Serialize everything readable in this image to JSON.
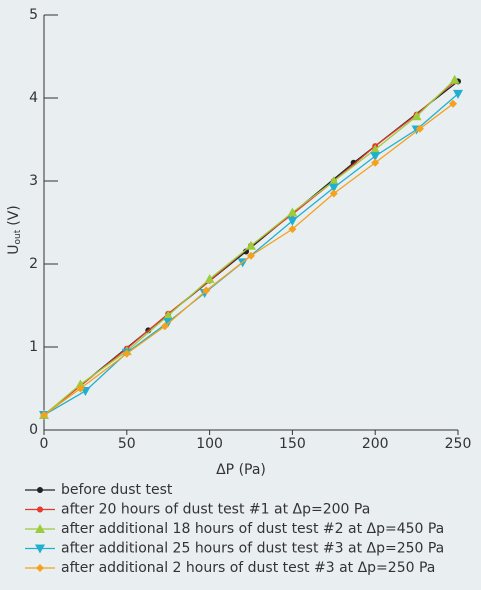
{
  "chart_data": {
    "type": "line",
    "x_label": "ΔP (Pa)",
    "y_label": {
      "main": "U",
      "sub": "out",
      "unit": "(V)"
    },
    "xlim": [
      0,
      250
    ],
    "xticks": [
      0,
      50,
      100,
      150,
      200,
      250
    ],
    "ylim": [
      0,
      5
    ],
    "yticks": [
      0,
      1,
      2,
      3,
      4,
      5
    ],
    "series": [
      {
        "name": "before dust test",
        "color": "#222222",
        "marker": "circle",
        "x": [
          0,
          63,
          122,
          187,
          250
        ],
        "values": [
          0.18,
          1.2,
          2.15,
          3.22,
          4.2
        ]
      },
      {
        "name": "after 20 hours of dust test #1 at Δp=200 Pa",
        "color": "#e8382c",
        "marker": "circle",
        "x": [
          0,
          50,
          75,
          100,
          125,
          150,
          175,
          200,
          225,
          248
        ],
        "values": [
          0.18,
          0.98,
          1.4,
          1.8,
          2.22,
          2.6,
          3.0,
          3.42,
          3.8,
          4.2
        ]
      },
      {
        "name": "after additional 18 hours of dust test #2 at Δp=450 Pa",
        "color": "#9ccc3c",
        "marker": "triangle-up",
        "x": [
          0,
          22,
          50,
          75,
          100,
          125,
          150,
          175,
          200,
          225,
          248
        ],
        "values": [
          0.18,
          0.55,
          0.95,
          1.38,
          1.82,
          2.22,
          2.62,
          3.0,
          3.38,
          3.78,
          4.22
        ]
      },
      {
        "name": "after additional 25 hours of dust test #3 at Δp=250 Pa",
        "color": "#1fb0d0",
        "marker": "triangle-down",
        "x": [
          0,
          25,
          50,
          75,
          97,
          120,
          150,
          175,
          200,
          225,
          250
        ],
        "values": [
          0.18,
          0.47,
          0.93,
          1.3,
          1.65,
          2.02,
          2.52,
          2.92,
          3.3,
          3.62,
          4.05
        ]
      },
      {
        "name": "after additional 2 hours of dust test #3 at Δp=250 Pa",
        "color": "#f4a11e",
        "marker": "diamond",
        "x": [
          0,
          22,
          50,
          73,
          98,
          125,
          150,
          175,
          200,
          227,
          247
        ],
        "values": [
          0.18,
          0.5,
          0.92,
          1.25,
          1.68,
          2.1,
          2.42,
          2.85,
          3.22,
          3.63,
          3.93
        ]
      }
    ]
  }
}
